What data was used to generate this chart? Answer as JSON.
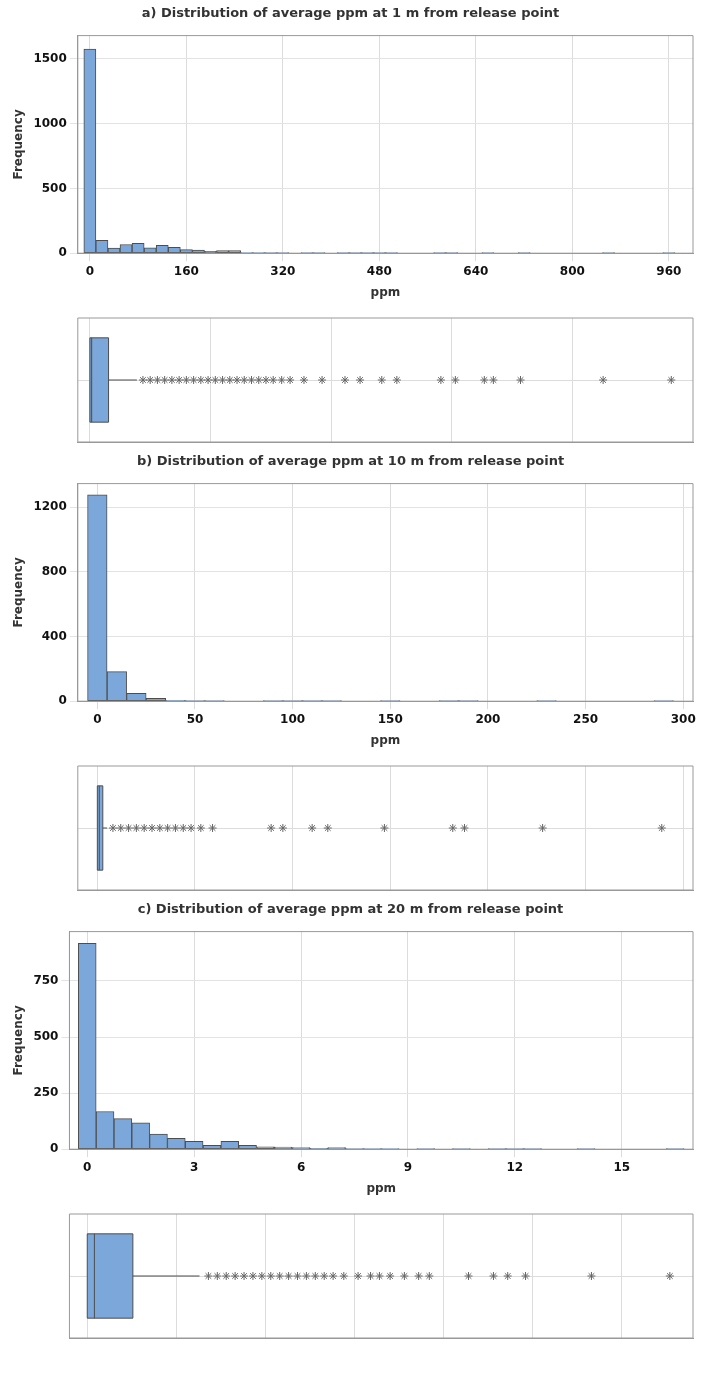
{
  "chart_data": [
    {
      "type": "histogram",
      "title": "a) Distribution of average ppm at 1 m from release point",
      "xlabel": "ppm",
      "ylabel": "Frequency",
      "color": "#7ba7da",
      "bins": [
        -10,
        10,
        30,
        50,
        70,
        90,
        110,
        130,
        150,
        170,
        190,
        210,
        230,
        250,
        270,
        290,
        310,
        330,
        350,
        370,
        390,
        410,
        430,
        450,
        470,
        490,
        510,
        530,
        550,
        570,
        590,
        610,
        630,
        650,
        670,
        690,
        710,
        730,
        750,
        770,
        790,
        810,
        830,
        850,
        870,
        890,
        910,
        930,
        950,
        970
      ],
      "values": [
        1575,
        100,
        39,
        67,
        77,
        42,
        60,
        46,
        28,
        25,
        14,
        21,
        21,
        5,
        4,
        3,
        2,
        0,
        3,
        3,
        0,
        1,
        1,
        1,
        1,
        1,
        0,
        0,
        0,
        1,
        1,
        0,
        0,
        2,
        0,
        0,
        1,
        0,
        0,
        0,
        0,
        0,
        0,
        1,
        0,
        0,
        0,
        0,
        1
      ],
      "xlim": [
        -20,
        1000
      ],
      "xticks": [
        0,
        160,
        320,
        480,
        640,
        800,
        960
      ],
      "ylim": [
        0,
        1680
      ],
      "yticks": [
        0,
        500,
        1000,
        1500
      ],
      "grid": true
    },
    {
      "type": "box",
      "orientation": "horizontal",
      "categories": [
        null
      ],
      "color": "#7ba7da",
      "marker": "star",
      "grid": true,
      "tick_labels": false,
      "xlim": [
        -20,
        1000
      ],
      "xticks": [
        0,
        200,
        400,
        600,
        800
      ],
      "boxes": [
        {
          "low": 0,
          "q1": 0,
          "median": 3,
          "q3": 31,
          "high": 78,
          "outliers": [
            88,
            100,
            112,
            124,
            136,
            148,
            160,
            172,
            184,
            196,
            208,
            220,
            232,
            244,
            256,
            268,
            280,
            292,
            304,
            318,
            332,
            355,
            385,
            423,
            448,
            484,
            509,
            582,
            606,
            654,
            669,
            714,
            851,
            964
          ]
        }
      ]
    },
    {
      "type": "histogram",
      "title": "b) Distribution of average ppm at 10 m from release point",
      "xlabel": "ppm",
      "ylabel": "Frequency",
      "color": "#7ba7da",
      "bins": [
        -5,
        5,
        15,
        25,
        35,
        45,
        55,
        65,
        75,
        85,
        95,
        105,
        115,
        125,
        135,
        145,
        155,
        165,
        175,
        185,
        195,
        205,
        215,
        225,
        235,
        245,
        255,
        265,
        275,
        285,
        295
      ],
      "values": [
        1275,
        183,
        49,
        18,
        5,
        3,
        3,
        0,
        0,
        2,
        1,
        1,
        1,
        0,
        0,
        3,
        0,
        0,
        2,
        3,
        0,
        0,
        0,
        3,
        0,
        0,
        0,
        0,
        0,
        2
      ],
      "xlim": [
        -10,
        305
      ],
      "xticks": [
        0,
        50,
        100,
        150,
        200,
        250,
        300
      ],
      "ylim": [
        0,
        1345
      ],
      "yticks": [
        0,
        400,
        800,
        1200
      ],
      "grid": true
    },
    {
      "type": "box",
      "orientation": "horizontal",
      "categories": [
        null
      ],
      "color": "#7ba7da",
      "marker": "star",
      "grid": true,
      "tick_labels": false,
      "xlim": [
        -10,
        305
      ],
      "xticks": [
        0,
        50,
        100,
        150,
        200,
        250,
        300
      ],
      "boxes": [
        {
          "low": 0,
          "q1": 0,
          "median": 1,
          "q3": 2.8,
          "high": 5,
          "outliers": [
            8,
            12,
            16,
            20,
            24,
            28,
            32,
            36,
            40,
            44,
            48,
            53,
            59,
            89,
            95,
            110,
            118,
            147,
            182,
            188,
            228,
            289
          ]
        }
      ]
    },
    {
      "type": "histogram",
      "title": "c) Distribution of average ppm at 20 m from release point",
      "xlabel": "ppm",
      "ylabel": "Frequency",
      "color": "#7ba7da",
      "bins": [
        -0.25,
        0.25,
        0.75,
        1.25,
        1.75,
        2.25,
        2.75,
        3.25,
        3.75,
        4.25,
        4.75,
        5.25,
        5.75,
        6.25,
        6.75,
        7.25,
        7.75,
        8.25,
        8.75,
        9.25,
        9.75,
        10.25,
        10.75,
        11.25,
        11.75,
        12.25,
        12.75,
        13.25,
        13.75,
        14.25,
        14.75,
        15.25,
        15.75,
        16.25,
        16.75
      ],
      "values": [
        918,
        168,
        136,
        118,
        67,
        49,
        35,
        17,
        35,
        17,
        11,
        9,
        7,
        4,
        7,
        2,
        3,
        3,
        0,
        2,
        0,
        1,
        0,
        2,
        1,
        1,
        0,
        0,
        1,
        0,
        0,
        0,
        0,
        1
      ],
      "xlim": [
        -0.5,
        17
      ],
      "xticks": [
        0,
        3,
        6,
        9,
        12,
        15
      ],
      "ylim": [
        0,
        970
      ],
      "yticks": [
        0,
        250,
        500,
        750
      ],
      "grid": true
    },
    {
      "type": "box",
      "orientation": "horizontal",
      "categories": [
        null
      ],
      "color": "#7ba7da",
      "marker": "star",
      "grid": true,
      "tick_labels": false,
      "xlim": [
        -0.5,
        17
      ],
      "xticks": [
        0,
        2.5,
        5,
        7.5,
        10,
        12.5,
        15
      ],
      "boxes": [
        {
          "low": 0,
          "q1": 0,
          "median": 0.2,
          "q3": 1.28,
          "high": 3.15,
          "outliers": [
            3.4,
            3.65,
            3.9,
            4.15,
            4.4,
            4.65,
            4.9,
            5.15,
            5.4,
            5.65,
            5.9,
            6.15,
            6.4,
            6.65,
            6.9,
            7.2,
            7.6,
            7.95,
            8.2,
            8.5,
            8.9,
            9.3,
            9.6,
            10.7,
            11.4,
            11.8,
            12.3,
            14.15,
            16.35
          ]
        }
      ]
    }
  ]
}
